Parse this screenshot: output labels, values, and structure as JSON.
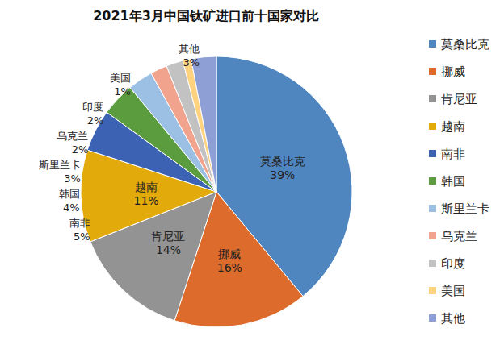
{
  "chart_data": {
    "type": "pie",
    "title": "2021年3月中国钛矿进口前十国家对比",
    "categories": [
      "莫桑比克",
      "挪威",
      "肯尼亚",
      "越南",
      "南非",
      "韩国",
      "斯里兰卡",
      "乌克兰",
      "印度",
      "美国",
      "其他"
    ],
    "values": [
      39,
      16,
      14,
      11,
      5,
      4,
      3,
      2,
      2,
      1,
      3
    ],
    "value_labels": [
      "39%",
      "16%",
      "14%",
      "11%",
      "5%",
      "4%",
      "3%",
      "2%",
      "2%",
      "1%",
      "3%"
    ],
    "colors": [
      "#4f86c0",
      "#dd6b2b",
      "#939393",
      "#e3aa0b",
      "#3b62b3",
      "#5a9c3e",
      "#9bc0e4",
      "#f1a38e",
      "#c2c2c2",
      "#ffd27f",
      "#8d9fd5"
    ],
    "data_labels": true,
    "legend": "right"
  }
}
